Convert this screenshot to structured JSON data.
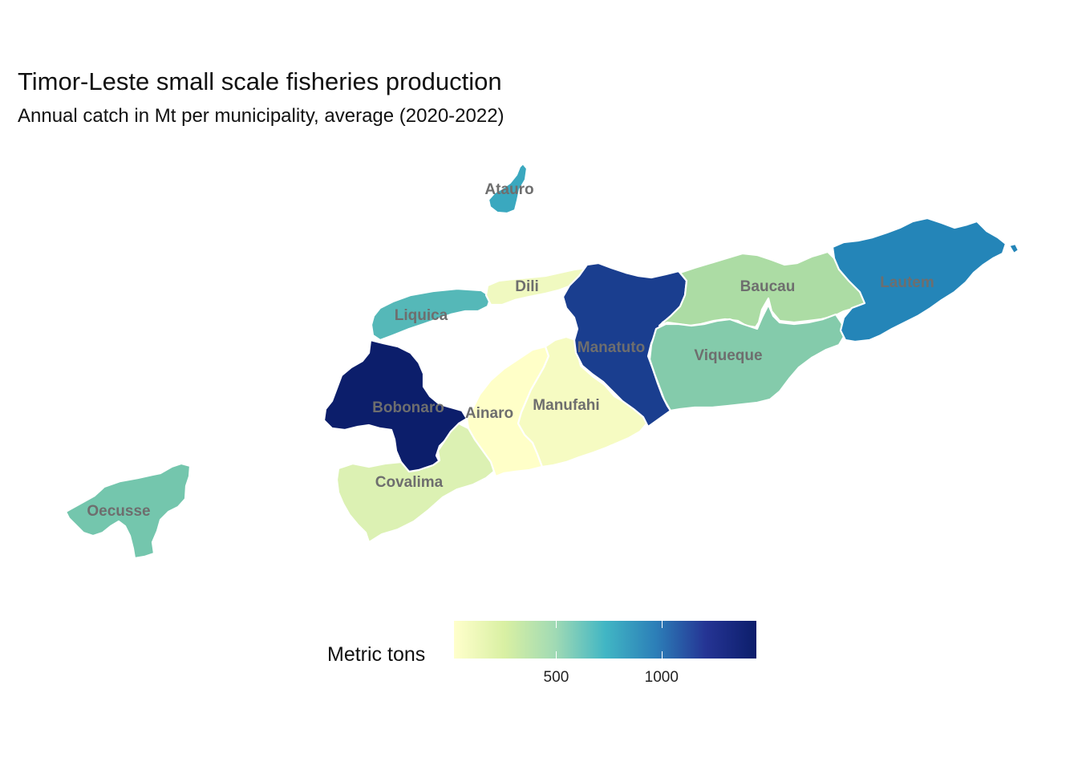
{
  "title": "Timor-Leste small scale fisheries production",
  "subtitle": "Annual catch in Mt per municipality, average (2020-2022)",
  "legend": {
    "title": "Metric tons",
    "ticks": [
      {
        "value": 500,
        "label": "500"
      },
      {
        "value": 1000,
        "label": "1000"
      }
    ],
    "range": [
      15,
      1450
    ],
    "palette": [
      "#ffffcc",
      "#d9f0a3",
      "#a1dab4",
      "#41b6c4",
      "#2c7fb8",
      "#253494",
      "#0c1e6b"
    ]
  },
  "regions": [
    {
      "id": "atauro",
      "name": "Atauro",
      "value": 620,
      "color": "#3aa8bf"
    },
    {
      "id": "dili",
      "name": "Dili",
      "value": 160,
      "color": "#f0f9c0"
    },
    {
      "id": "liquica",
      "name": "Liquica",
      "value": 580,
      "color": "#55b8b8"
    },
    {
      "id": "bobonaro",
      "name": "Bobonaro",
      "value": 1450,
      "color": "#0c1e6b"
    },
    {
      "id": "ainaro",
      "name": "Ainaro",
      "value": 15,
      "color": "#ffffc8"
    },
    {
      "id": "manufahi",
      "name": "Manufahi",
      "value": 60,
      "color": "#f6fbc2"
    },
    {
      "id": "covalima",
      "name": "Covalima",
      "value": 210,
      "color": "#dcf1b3"
    },
    {
      "id": "manatuto",
      "name": "Manatuto",
      "value": 1280,
      "color": "#1a3e8f"
    },
    {
      "id": "baucau",
      "name": "Baucau",
      "value": 330,
      "color": "#acdca4"
    },
    {
      "id": "viqueque",
      "name": "Viqueque",
      "value": 450,
      "color": "#84cbab"
    },
    {
      "id": "lautem",
      "name": "Lautem",
      "value": 1050,
      "color": "#2485b8"
    },
    {
      "id": "oecusse",
      "name": "Oecusse",
      "value": 480,
      "color": "#74c6ad"
    }
  ]
}
